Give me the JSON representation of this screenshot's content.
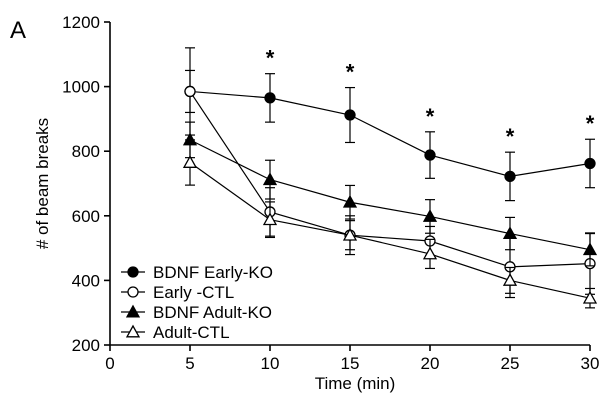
{
  "panel_label": "A",
  "chart_data": {
    "type": "line",
    "title": "",
    "xlabel": "Time (min)",
    "ylabel": "# of beam breaks",
    "xlim": [
      0,
      30
    ],
    "ylim": [
      200,
      1200
    ],
    "xticks": [
      0,
      5,
      10,
      15,
      20,
      25,
      30
    ],
    "yticks": [
      200,
      400,
      600,
      800,
      1000,
      1200
    ],
    "x": [
      5,
      10,
      15,
      20,
      25,
      30
    ],
    "legend_position": "bottom-left",
    "grid": false,
    "significance_marker": "*",
    "significance_x": [
      10,
      15,
      20,
      25,
      30
    ],
    "series": [
      {
        "name": "BDNF Early-KO",
        "marker": "filled-circle",
        "values": [
          985,
          965,
          912,
          788,
          722,
          762
        ],
        "errors": [
          135,
          75,
          85,
          72,
          75,
          75
        ]
      },
      {
        "name": "Early -CTL",
        "marker": "open-circle",
        "values": [
          985,
          612,
          540,
          522,
          442,
          452
        ],
        "errors": [
          65,
          75,
          45,
          45,
          95,
          95
        ]
      },
      {
        "name": "BDNF Adult-KO",
        "marker": "filled-triangle",
        "values": [
          835,
          712,
          642,
          598,
          545,
          495
        ],
        "errors": [
          55,
          60,
          52,
          52,
          50,
          50
        ]
      },
      {
        "name": "Adult-CTL",
        "marker": "open-triangle",
        "values": [
          765,
          588,
          540,
          482,
          400,
          345
        ],
        "errors": [
          70,
          55,
          60,
          45,
          40,
          30
        ]
      }
    ]
  }
}
